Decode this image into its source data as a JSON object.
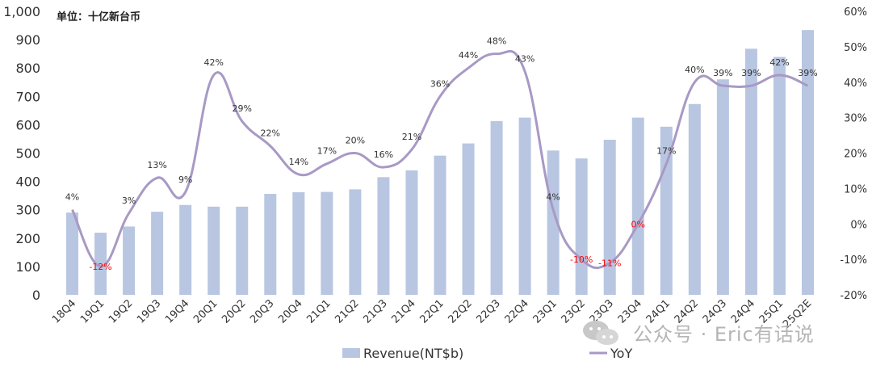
{
  "unit_label": "单位：十亿新台币",
  "watermark": {
    "icon": "wechat-icon",
    "text": "公众号 · Eric有话说"
  },
  "colors": {
    "bar": "#b8c6e1",
    "line": "#a899c5",
    "axis_text": "#333333",
    "negative_label": "#ff0000",
    "label_text": "#333333"
  },
  "chart_data": {
    "type": "bar",
    "categories": [
      "18Q4",
      "19Q1",
      "19Q2",
      "19Q3",
      "19Q4",
      "20Q1",
      "20Q2",
      "20Q3",
      "20Q4",
      "21Q1",
      "21Q2",
      "21Q3",
      "21Q4",
      "22Q1",
      "22Q2",
      "22Q3",
      "22Q4",
      "23Q1",
      "23Q2",
      "23Q3",
      "23Q4",
      "24Q1",
      "24Q2",
      "24Q3",
      "24Q4",
      "25Q1",
      "25Q2E"
    ],
    "series": [
      {
        "name": "Revenue(NT$b)",
        "type": "bar",
        "axis": "left",
        "values": [
          290,
          219,
          241,
          293,
          317,
          311,
          311,
          356,
          362,
          363,
          372,
          415,
          439,
          491,
          534,
          613,
          625,
          509,
          481,
          547,
          625,
          593,
          673,
          760,
          868,
          839,
          934
        ]
      },
      {
        "name": "YoY",
        "type": "line",
        "axis": "right",
        "values": [
          4,
          -12,
          3,
          13,
          9,
          42,
          29,
          22,
          14,
          17,
          20,
          16,
          21,
          36,
          44,
          48,
          43,
          4,
          -10,
          -11,
          0,
          17,
          40,
          39,
          39,
          42,
          39
        ]
      }
    ],
    "data_labels": [
      "4%",
      "-12%",
      "3%",
      "13%",
      "9%",
      "42%",
      "29%",
      "22%",
      "14%",
      "17%",
      "20%",
      "16%",
      "21%",
      "36%",
      "44%",
      "48%",
      "43%",
      "4%",
      "-10%",
      "-11%",
      "0%",
      "17%",
      "40%",
      "39%",
      "39%",
      "42%",
      "39%"
    ],
    "y_left": {
      "min": 0,
      "max": 1000,
      "ticks": [
        "0",
        "100",
        "200",
        "300",
        "400",
        "500",
        "600",
        "700",
        "800",
        "900",
        "1,000"
      ]
    },
    "y_right": {
      "min": -20,
      "max": 60,
      "ticks": [
        "-20%",
        "-10%",
        "0%",
        "10%",
        "20%",
        "30%",
        "40%",
        "50%",
        "60%"
      ]
    },
    "legend": {
      "position": "bottom",
      "items": [
        "Revenue(NT$b)",
        "YoY"
      ]
    },
    "grid": false
  }
}
